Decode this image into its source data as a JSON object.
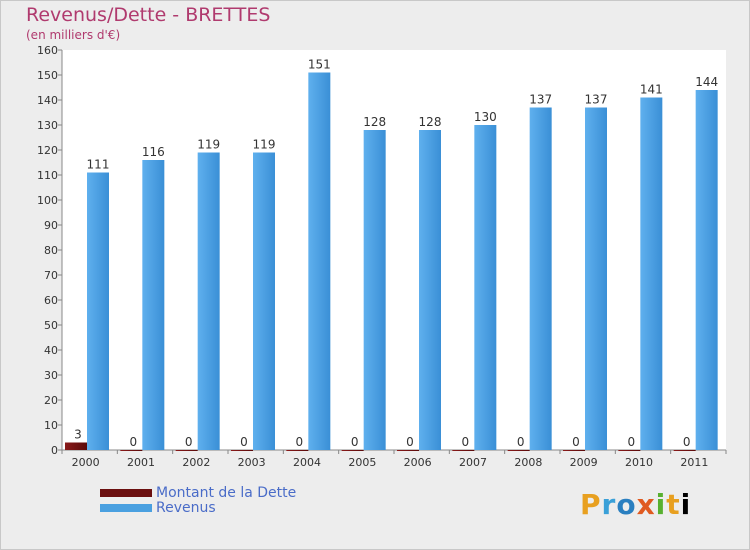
{
  "title": "Revenus/Dette - BRETTES",
  "subtitle": "(en milliers d'€)",
  "logo_text": "Proxiti",
  "chart_data": {
    "type": "bar",
    "categories": [
      "2000",
      "2001",
      "2002",
      "2003",
      "2004",
      "2005",
      "2006",
      "2007",
      "2008",
      "2009",
      "2010",
      "2011"
    ],
    "series": [
      {
        "name": "Montant de la Dette",
        "color": "#6b0f0f",
        "values": [
          3,
          0,
          0,
          0,
          0,
          0,
          0,
          0,
          0,
          0,
          0,
          0
        ]
      },
      {
        "name": "Revenus",
        "color": "#4aa0e0",
        "values": [
          111,
          116,
          119,
          119,
          151,
          128,
          128,
          130,
          137,
          137,
          141,
          144
        ]
      }
    ],
    "ylim": [
      0,
      160
    ],
    "yticks": [
      0,
      10,
      20,
      30,
      40,
      50,
      60,
      70,
      80,
      90,
      100,
      110,
      120,
      130,
      140,
      150,
      160
    ],
    "grid": false,
    "legend_position": "bottom-left"
  }
}
